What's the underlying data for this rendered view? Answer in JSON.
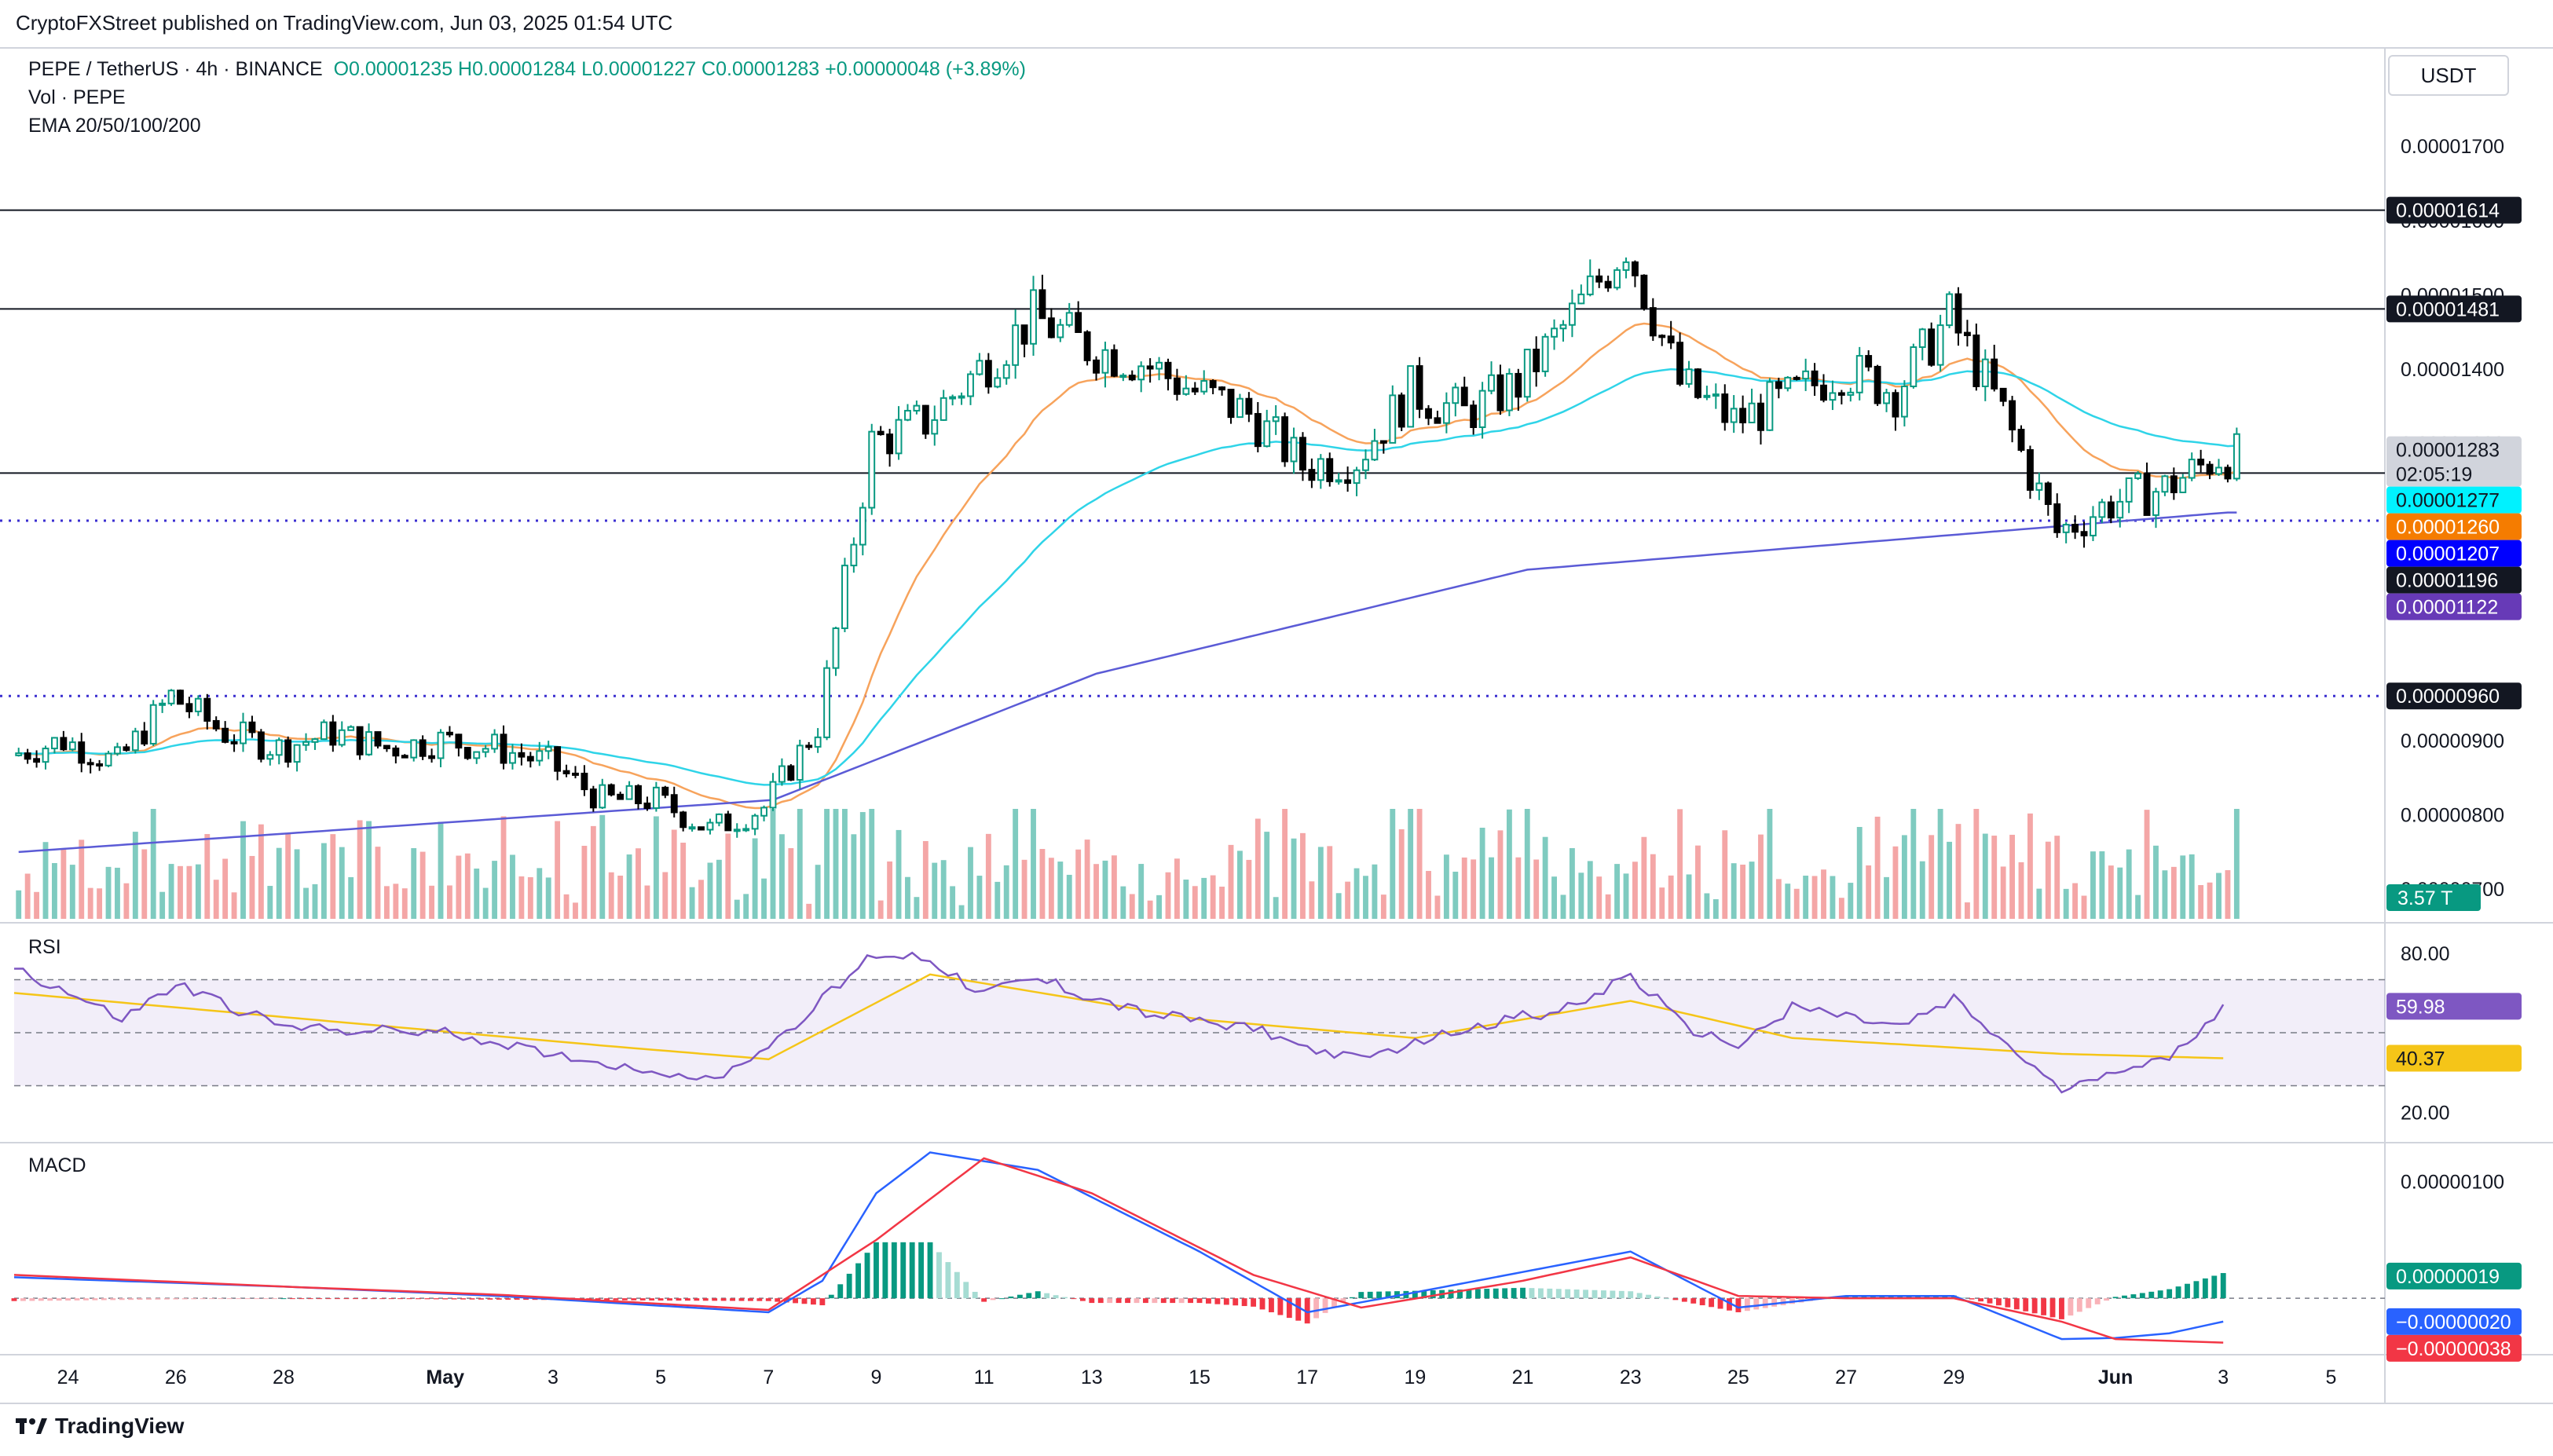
{
  "header": {
    "published": "CryptoFXStreet published on TradingView.com, Jun 03, 2025 01:54 UTC",
    "currency": "USDT",
    "footer_brand": "TradingView"
  },
  "legend": {
    "symbol": "PEPE / TetherUS · 4h · BINANCE",
    "ohlc": "O0.00001235  H0.00001284  L0.00001227  C0.00001283  +0.00000048 (+3.89%)",
    "vol": "Vol · PEPE",
    "ema": "EMA 20/50/100/200"
  },
  "panes": {
    "rsi_label": "RSI",
    "macd_label": "MACD"
  },
  "colors": {
    "up": "#089981",
    "down": "#000000",
    "ema20": "#f7a35c",
    "ema50": "#2fd4e8",
    "ema200": "#5b5bd6",
    "vol_up": "#7fcbc0",
    "vol_down": "#f4a6a6",
    "rsi": "#7e57c2",
    "rsi_ma": "#f5c518",
    "macd": "#2962ff",
    "signal": "#f23645"
  },
  "chart_data": [
    {
      "type": "candlestick",
      "title": "PEPE / TetherUS · 4h · BINANCE",
      "timeframe": "4h",
      "x_range": [
        "2025-04-23",
        "2025-06-06"
      ],
      "x_ticks": [
        "24",
        "26",
        "28",
        "May",
        "3",
        "5",
        "7",
        "9",
        "11",
        "13",
        "15",
        "17",
        "19",
        "21",
        "23",
        "25",
        "27",
        "29",
        "Jun",
        "3",
        "5"
      ],
      "y_ticks": [
        "0.00001700",
        "0.00001600",
        "0.00001500",
        "0.00001400",
        "0.00001300",
        "0.00000900",
        "0.00000800",
        "0.00000700"
      ],
      "ylim": [
        6.6e-06,
        1.77e-05
      ],
      "ohlc": {
        "open": 1.235e-05,
        "high": 1.284e-05,
        "low": 1.227e-05,
        "close": 1.283e-05,
        "change": 4.8e-07,
        "change_pct": 3.89
      },
      "close_path": [
        [
          "2025-04-23",
          8.8e-06
        ],
        [
          "2025-04-24",
          9e-06
        ],
        [
          "2025-04-25",
          8.7e-06
        ],
        [
          "2025-04-26",
          9.6e-06
        ],
        [
          "2025-04-27",
          9.1e-06
        ],
        [
          "2025-04-28",
          8.9e-06
        ],
        [
          "2025-04-29",
          9.1e-06
        ],
        [
          "2025-04-30",
          8.9e-06
        ],
        [
          "2025-05-01",
          9e-06
        ],
        [
          "2025-05-02",
          8.9e-06
        ],
        [
          "2025-05-03",
          8.7e-06
        ],
        [
          "2025-05-04",
          8.2e-06
        ],
        [
          "2025-05-05",
          8.2e-06
        ],
        [
          "2025-05-06",
          7.8e-06
        ],
        [
          "2025-05-07",
          8.1e-06
        ],
        [
          "2025-05-08",
          9.2e-06
        ],
        [
          "2025-05-09",
          1.3e-05
        ],
        [
          "2025-05-10",
          1.33e-05
        ],
        [
          "2025-05-11",
          1.4e-05
        ],
        [
          "2025-05-12",
          1.47e-05
        ],
        [
          "2025-05-13",
          1.43e-05
        ],
        [
          "2025-05-14",
          1.41e-05
        ],
        [
          "2025-05-15",
          1.37e-05
        ],
        [
          "2025-05-16",
          1.34e-05
        ],
        [
          "2025-05-17",
          1.27e-05
        ],
        [
          "2025-05-18",
          1.28e-05
        ],
        [
          "2025-05-19",
          1.37e-05
        ],
        [
          "2025-05-20",
          1.34e-05
        ],
        [
          "2025-05-21",
          1.38e-05
        ],
        [
          "2025-05-22",
          1.47e-05
        ],
        [
          "2025-05-23",
          1.57e-05
        ],
        [
          "2025-05-24",
          1.38e-05
        ],
        [
          "2025-05-25",
          1.33e-05
        ],
        [
          "2025-05-26",
          1.36e-05
        ],
        [
          "2025-05-27",
          1.4e-05
        ],
        [
          "2025-05-28",
          1.37e-05
        ],
        [
          "2025-05-29",
          1.47e-05
        ],
        [
          "2025-05-30",
          1.34e-05
        ],
        [
          "2025-05-31",
          1.18e-05
        ],
        [
          "2025-06-01",
          1.22e-05
        ],
        [
          "2025-06-02",
          1.24e-05
        ],
        [
          "2025-06-03",
          1.283e-05
        ]
      ],
      "ema_200_path": [
        [
          "2025-04-23",
          7.5e-06
        ],
        [
          "2025-05-07",
          8.2e-06
        ],
        [
          "2025-05-13",
          9.9e-06
        ],
        [
          "2025-05-21",
          1.13e-05
        ],
        [
          "2025-06-03",
          1.207e-05
        ]
      ],
      "levels": [
        {
          "value": 1.614e-05,
          "label": "0.00001614",
          "style": "solid"
        },
        {
          "value": 1.481e-05,
          "label": "0.00001481",
          "style": "solid"
        },
        {
          "value": 1.26e-05,
          "label": "",
          "style": "solid"
        },
        {
          "value": 1.196e-05,
          "label": "",
          "style": "dotted"
        },
        {
          "value": 9.6e-06,
          "label": "0.00000960",
          "style": "dotted"
        }
      ],
      "badges": [
        {
          "label": "0.00001283",
          "sub": "02:05:19",
          "value": 1.283e-05,
          "bg": "#d1d4dc",
          "fg": "#131722"
        },
        {
          "label": "0.00001277",
          "value": 1.277e-05,
          "bg": "#00f2ff",
          "fg": "#131722"
        },
        {
          "label": "0.00001260",
          "value": 1.26e-05,
          "bg": "#f57c00",
          "fg": "#ffffff"
        },
        {
          "label": "0.00001207",
          "value": 1.207e-05,
          "bg": "#0000ff",
          "fg": "#ffffff"
        },
        {
          "label": "0.00001196",
          "value": 1.196e-05,
          "bg": "#131722",
          "fg": "#ffffff"
        },
        {
          "label": "0.00001122",
          "value": 1.122e-05,
          "bg": "#673ab7",
          "fg": "#ffffff"
        }
      ],
      "volume_badge": "3.57 T"
    },
    {
      "type": "line",
      "title": "RSI",
      "ylim": [
        10,
        90
      ],
      "y_ticks": [
        "80.00",
        "20.00"
      ],
      "bands": [
        70,
        50,
        30
      ],
      "rsi_path": [
        [
          "2025-04-23",
          75
        ],
        [
          "2025-04-25",
          55
        ],
        [
          "2025-04-26",
          68
        ],
        [
          "2025-04-28",
          52
        ],
        [
          "2025-05-01",
          50
        ],
        [
          "2025-05-04",
          38
        ],
        [
          "2025-05-06",
          32
        ],
        [
          "2025-05-07",
          45
        ],
        [
          "2025-05-08",
          62
        ],
        [
          "2025-05-09",
          80
        ],
        [
          "2025-05-10",
          78
        ],
        [
          "2025-05-11",
          65
        ],
        [
          "2025-05-12",
          70
        ],
        [
          "2025-05-14",
          57
        ],
        [
          "2025-05-16",
          52
        ],
        [
          "2025-05-17",
          44
        ],
        [
          "2025-05-18",
          40
        ],
        [
          "2025-05-20",
          52
        ],
        [
          "2025-05-22",
          60
        ],
        [
          "2025-05-23",
          72
        ],
        [
          "2025-05-24",
          52
        ],
        [
          "2025-05-25",
          45
        ],
        [
          "2025-05-26",
          60
        ],
        [
          "2025-05-28",
          52
        ],
        [
          "2025-05-29",
          62
        ],
        [
          "2025-05-30",
          45
        ],
        [
          "2025-05-31",
          28
        ],
        [
          "2025-06-01",
          36
        ],
        [
          "2025-06-02",
          40
        ],
        [
          "2025-06-03",
          59.98
        ]
      ],
      "rsi_ma_path": [
        [
          "2025-04-23",
          65
        ],
        [
          "2025-05-04",
          45
        ],
        [
          "2025-05-07",
          40
        ],
        [
          "2025-05-10",
          72
        ],
        [
          "2025-05-15",
          55
        ],
        [
          "2025-05-19",
          48
        ],
        [
          "2025-05-23",
          62
        ],
        [
          "2025-05-26",
          48
        ],
        [
          "2025-05-31",
          42
        ],
        [
          "2025-06-03",
          40.37
        ]
      ],
      "badges": [
        {
          "label": "59.98",
          "value": 59.98,
          "bg": "#7e57c2",
          "fg": "#ffffff"
        },
        {
          "label": "40.37",
          "value": 40.37,
          "bg": "#f5c518",
          "fg": "#131722"
        }
      ]
    },
    {
      "type": "line",
      "title": "MACD",
      "ylim": [
        -4.5e-07,
        1.3e-06
      ],
      "y_ticks": [
        "0.00000100"
      ],
      "macd_path": [
        [
          "2025-04-23",
          1.8e-07
        ],
        [
          "2025-04-28",
          1e-07
        ],
        [
          "2025-05-02",
          2e-08
        ],
        [
          "2025-05-07",
          -1.2e-07
        ],
        [
          "2025-05-08",
          1.5e-07
        ],
        [
          "2025-05-09",
          9e-07
        ],
        [
          "2025-05-10",
          1.25e-06
        ],
        [
          "2025-05-12",
          1.1e-06
        ],
        [
          "2025-05-15",
          4e-07
        ],
        [
          "2025-05-17",
          -1.2e-07
        ],
        [
          "2025-05-19",
          5e-08
        ],
        [
          "2025-05-23",
          4e-07
        ],
        [
          "2025-05-25",
          -8e-08
        ],
        [
          "2025-05-27",
          2e-08
        ],
        [
          "2025-05-29",
          2e-08
        ],
        [
          "2025-05-31",
          -3.5e-07
        ],
        [
          "2025-06-01",
          -3.4e-07
        ],
        [
          "2025-06-02",
          -3e-07
        ],
        [
          "2025-06-03",
          -2e-07
        ]
      ],
      "signal_path": [
        [
          "2025-04-23",
          2e-07
        ],
        [
          "2025-04-28",
          1e-07
        ],
        [
          "2025-05-02",
          3e-08
        ],
        [
          "2025-05-07",
          -1e-07
        ],
        [
          "2025-05-09",
          5e-07
        ],
        [
          "2025-05-11",
          1.2e-06
        ],
        [
          "2025-05-13",
          9e-07
        ],
        [
          "2025-05-16",
          2e-07
        ],
        [
          "2025-05-18",
          -8e-08
        ],
        [
          "2025-05-21",
          1.5e-07
        ],
        [
          "2025-05-23",
          3.5e-07
        ],
        [
          "2025-05-25",
          2e-08
        ],
        [
          "2025-05-27",
          0.0
        ],
        [
          "2025-05-29",
          0.0
        ],
        [
          "2025-05-31",
          -2e-07
        ],
        [
          "2025-06-01",
          -3.5e-07
        ],
        [
          "2025-06-03",
          -3.8e-07
        ]
      ],
      "badges": [
        {
          "label": "0.00000019",
          "value": 1.9e-07,
          "bg": "#089981",
          "fg": "#ffffff"
        },
        {
          "label": "−0.00000020",
          "value": -2e-07,
          "bg": "#2962ff",
          "fg": "#ffffff"
        },
        {
          "label": "−0.00000038",
          "value": -3.8e-07,
          "bg": "#f23645",
          "fg": "#ffffff"
        }
      ]
    }
  ]
}
